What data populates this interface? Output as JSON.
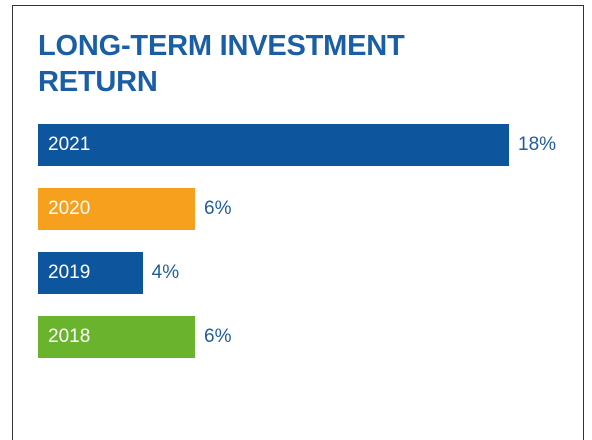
{
  "chart_data": {
    "type": "bar",
    "orientation": "horizontal",
    "title": "LONG-TERM INVESTMENT RETURN",
    "categories": [
      "2021",
      "2020",
      "2019",
      "2018"
    ],
    "values": [
      18,
      6,
      4,
      6
    ],
    "value_labels": [
      "18%",
      "6%",
      "4%",
      "6%"
    ],
    "colors": [
      "#0d559c",
      "#f7a01e",
      "#0d559c",
      "#6ab42d"
    ]
  }
}
